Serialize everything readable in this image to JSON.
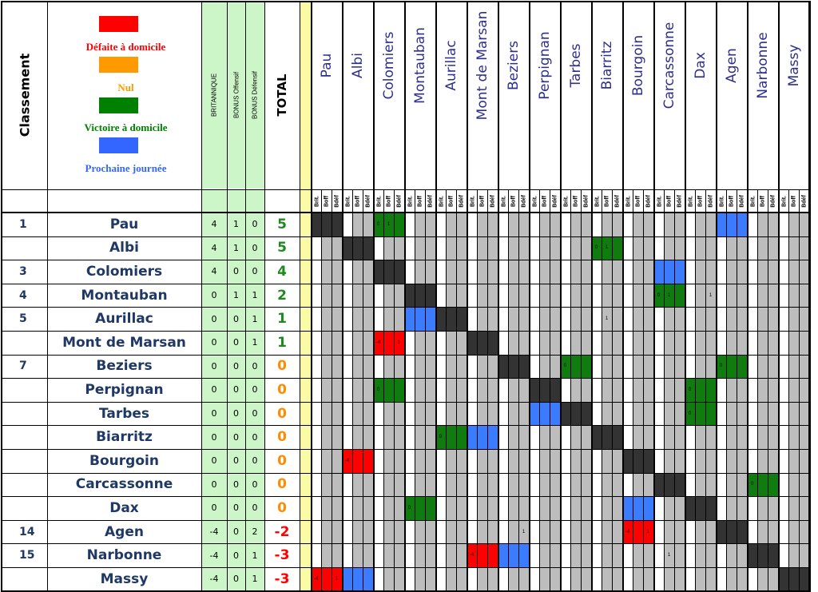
{
  "headers": {
    "classement": "Classement",
    "britannique": "BRITANNIQUE",
    "bonus_offensif": "BONUS Offensif",
    "bonus_defensif": "BONUS Défensif",
    "total": "TOTAL"
  },
  "legend": [
    {
      "label": "Défaite à domicile",
      "color": "#ff0000",
      "text_color": "#ff0000"
    },
    {
      "label": "Nul",
      "color": "#ff9900",
      "text_color": "#ff9900"
    },
    {
      "label": "Victoire à domicile",
      "color": "#008000",
      "text_color": "#008000"
    },
    {
      "label": "Prochaine journée",
      "color": "#3366ff",
      "text_color": "#3366ff"
    }
  ],
  "sub_labels": [
    "Brit.",
    "Boff",
    "Bdéf"
  ],
  "colors": {
    "black": "#333333",
    "red": "#ff0000",
    "green": "#107c10",
    "blue": "#3a7bff",
    "gray": "#bdbdbd",
    "header_green": "#ccf5c8",
    "yellow": "#fbfba6",
    "team_blue": "#1f3864",
    "total_green": "#1e8a1e",
    "total_orange": "#ff8c00",
    "total_red": "#ff0000"
  },
  "teams": [
    {
      "rank": "1",
      "name": "Pau",
      "brit": "4",
      "boff": "1",
      "bdef": "0",
      "total": "5",
      "tone": "green"
    },
    {
      "rank": "",
      "name": "Albi",
      "brit": "4",
      "boff": "1",
      "bdef": "0",
      "total": "5",
      "tone": "green"
    },
    {
      "rank": "3",
      "name": "Colomiers",
      "brit": "4",
      "boff": "0",
      "bdef": "0",
      "total": "4",
      "tone": "green"
    },
    {
      "rank": "4",
      "name": "Montauban",
      "brit": "0",
      "boff": "1",
      "bdef": "1",
      "total": "2",
      "tone": "green"
    },
    {
      "rank": "5",
      "name": "Aurillac",
      "brit": "0",
      "boff": "0",
      "bdef": "1",
      "total": "1",
      "tone": "green"
    },
    {
      "rank": "",
      "name": "Mont de Marsan",
      "brit": "0",
      "boff": "0",
      "bdef": "1",
      "total": "1",
      "tone": "green"
    },
    {
      "rank": "7",
      "name": "Beziers",
      "brit": "0",
      "boff": "0",
      "bdef": "0",
      "total": "0",
      "tone": "orange"
    },
    {
      "rank": "",
      "name": "Perpignan",
      "brit": "0",
      "boff": "0",
      "bdef": "0",
      "total": "0",
      "tone": "orange"
    },
    {
      "rank": "",
      "name": "Tarbes",
      "brit": "0",
      "boff": "0",
      "bdef": "0",
      "total": "0",
      "tone": "orange"
    },
    {
      "rank": "",
      "name": "Biarritz",
      "brit": "0",
      "boff": "0",
      "bdef": "0",
      "total": "0",
      "tone": "orange"
    },
    {
      "rank": "",
      "name": "Bourgoin",
      "brit": "0",
      "boff": "0",
      "bdef": "0",
      "total": "0",
      "tone": "orange"
    },
    {
      "rank": "",
      "name": "Carcassonne",
      "brit": "0",
      "boff": "0",
      "bdef": "0",
      "total": "0",
      "tone": "orange"
    },
    {
      "rank": "",
      "name": "Dax",
      "brit": "0",
      "boff": "0",
      "bdef": "0",
      "total": "0",
      "tone": "orange"
    },
    {
      "rank": "14",
      "name": "Agen",
      "brit": "-4",
      "boff": "0",
      "bdef": "2",
      "total": "-2",
      "tone": "red"
    },
    {
      "rank": "15",
      "name": "Narbonne",
      "brit": "-4",
      "boff": "0",
      "bdef": "1",
      "total": "-3",
      "tone": "red"
    },
    {
      "rank": "",
      "name": "Massy",
      "brit": "-4",
      "boff": "0",
      "bdef": "1",
      "total": "-3",
      "tone": "red"
    }
  ],
  "matrix_cells": [
    {
      "row": 0,
      "col": 2,
      "color": "green",
      "texts": [
        "0",
        "1",
        ""
      ]
    },
    {
      "row": 0,
      "col": 13,
      "color": "blue",
      "texts": [
        "",
        "",
        ""
      ]
    },
    {
      "row": 1,
      "col": 9,
      "color": "green",
      "texts": [
        "0",
        "1",
        ""
      ]
    },
    {
      "row": 2,
      "col": 11,
      "color": "blue",
      "texts": [
        "",
        "",
        ""
      ]
    },
    {
      "row": 3,
      "col": 11,
      "color": "green",
      "texts": [
        "0",
        "1",
        ""
      ]
    },
    {
      "row": 3,
      "col": 12,
      "color": "none",
      "texts": [
        "",
        "",
        "1"
      ]
    },
    {
      "row": 4,
      "col": 3,
      "color": "blue",
      "texts": [
        "",
        "",
        ""
      ]
    },
    {
      "row": 4,
      "col": 9,
      "color": "none",
      "texts": [
        "",
        "1",
        ""
      ]
    },
    {
      "row": 5,
      "col": 2,
      "color": "red",
      "texts": [
        "-4",
        "",
        "1"
      ]
    },
    {
      "row": 6,
      "col": 8,
      "color": "green",
      "texts": [
        "0",
        "",
        ""
      ]
    },
    {
      "row": 6,
      "col": 13,
      "color": "green",
      "texts": [
        "0",
        "",
        ""
      ]
    },
    {
      "row": 7,
      "col": 2,
      "color": "green",
      "texts": [
        "0",
        "",
        ""
      ]
    },
    {
      "row": 7,
      "col": 12,
      "color": "green",
      "texts": [
        "0",
        "",
        ""
      ]
    },
    {
      "row": 8,
      "col": 7,
      "color": "blue",
      "texts": [
        "",
        "",
        ""
      ]
    },
    {
      "row": 8,
      "col": 12,
      "color": "green",
      "texts": [
        "0",
        "",
        ""
      ]
    },
    {
      "row": 9,
      "col": 4,
      "color": "green",
      "texts": [
        "0",
        "",
        ""
      ]
    },
    {
      "row": 9,
      "col": 5,
      "color": "blue",
      "texts": [
        "",
        "",
        ""
      ]
    },
    {
      "row": 10,
      "col": 1,
      "color": "red",
      "texts": [
        "-4",
        "",
        ""
      ]
    },
    {
      "row": 11,
      "col": 14,
      "color": "green",
      "texts": [
        "0",
        "",
        ""
      ]
    },
    {
      "row": 12,
      "col": 3,
      "color": "green",
      "texts": [
        "0",
        "",
        ""
      ]
    },
    {
      "row": 12,
      "col": 10,
      "color": "blue",
      "texts": [
        "",
        "",
        ""
      ]
    },
    {
      "row": 13,
      "col": 6,
      "color": "none",
      "texts": [
        "",
        "",
        "1"
      ]
    },
    {
      "row": 13,
      "col": 10,
      "color": "red",
      "texts": [
        "-4",
        "",
        "1"
      ]
    },
    {
      "row": 14,
      "col": 5,
      "color": "red",
      "texts": [
        "-4",
        "",
        ""
      ]
    },
    {
      "row": 14,
      "col": 6,
      "color": "blue",
      "texts": [
        "",
        "",
        ""
      ]
    },
    {
      "row": 14,
      "col": 11,
      "color": "none",
      "texts": [
        "",
        "1",
        ""
      ]
    },
    {
      "row": 15,
      "col": 0,
      "color": "red",
      "texts": [
        "-4",
        "",
        "1"
      ]
    },
    {
      "row": 15,
      "col": 1,
      "color": "blue",
      "texts": [
        "",
        "",
        ""
      ]
    }
  ]
}
